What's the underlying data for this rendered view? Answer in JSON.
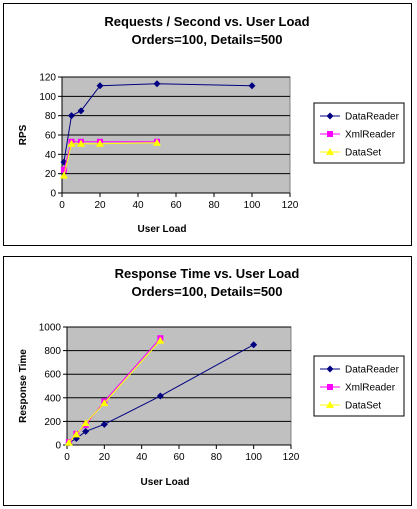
{
  "chart_data": [
    {
      "type": "line",
      "title": "Requests / Second  vs.  User Load",
      "subtitle": "Orders=100, Details=500",
      "xlabel": "User Load",
      "ylabel": "RPS",
      "xlim": [
        0,
        120
      ],
      "ylim": [
        0,
        120
      ],
      "xticks": [
        0,
        20,
        40,
        60,
        80,
        100,
        120
      ],
      "yticks": [
        0,
        20,
        40,
        60,
        80,
        100,
        120
      ],
      "grid": "horizontal",
      "legend_position": "right",
      "series": [
        {
          "name": "DataReader",
          "color": "#000080",
          "marker": "diamond",
          "points": [
            [
              1,
              32
            ],
            [
              5,
              80
            ],
            [
              10,
              85
            ],
            [
              20,
              111
            ],
            [
              50,
              113
            ],
            [
              100,
              111
            ]
          ]
        },
        {
          "name": "XmlReader",
          "color": "#ff00ff",
          "marker": "square",
          "points": [
            [
              1,
              24
            ],
            [
              5,
              53
            ],
            [
              10,
              53
            ],
            [
              20,
              53
            ],
            [
              50,
              53
            ]
          ]
        },
        {
          "name": "DataSet",
          "color": "#ffff00",
          "marker": "triangle",
          "points": [
            [
              1,
              18
            ],
            [
              5,
              51
            ],
            [
              10,
              51
            ],
            [
              20,
              51
            ],
            [
              50,
              52
            ]
          ]
        }
      ]
    },
    {
      "type": "line",
      "title": "Response Time  vs.  User Load",
      "subtitle": "Orders=100, Details=500",
      "xlabel": "User Load",
      "ylabel": "Response Time",
      "xlim": [
        0,
        120
      ],
      "ylim": [
        0,
        1000
      ],
      "xticks": [
        0,
        20,
        40,
        60,
        80,
        100,
        120
      ],
      "yticks": [
        0,
        200,
        400,
        600,
        800,
        1000
      ],
      "grid": "horizontal",
      "legend_position": "right",
      "series": [
        {
          "name": "DataReader",
          "color": "#000080",
          "marker": "diamond",
          "points": [
            [
              1,
              18
            ],
            [
              5,
              55
            ],
            [
              10,
              115
            ],
            [
              20,
              175
            ],
            [
              50,
              415
            ],
            [
              100,
              850
            ]
          ]
        },
        {
          "name": "XmlReader",
          "color": "#ff00ff",
          "marker": "square",
          "points": [
            [
              1,
              25
            ],
            [
              5,
              95
            ],
            [
              10,
              170
            ],
            [
              20,
              370
            ],
            [
              50,
              905
            ]
          ]
        },
        {
          "name": "DataSet",
          "color": "#ffff00",
          "marker": "triangle",
          "points": [
            [
              1,
              20
            ],
            [
              5,
              90
            ],
            [
              10,
              185
            ],
            [
              20,
              355
            ],
            [
              50,
              885
            ]
          ]
        }
      ]
    }
  ]
}
